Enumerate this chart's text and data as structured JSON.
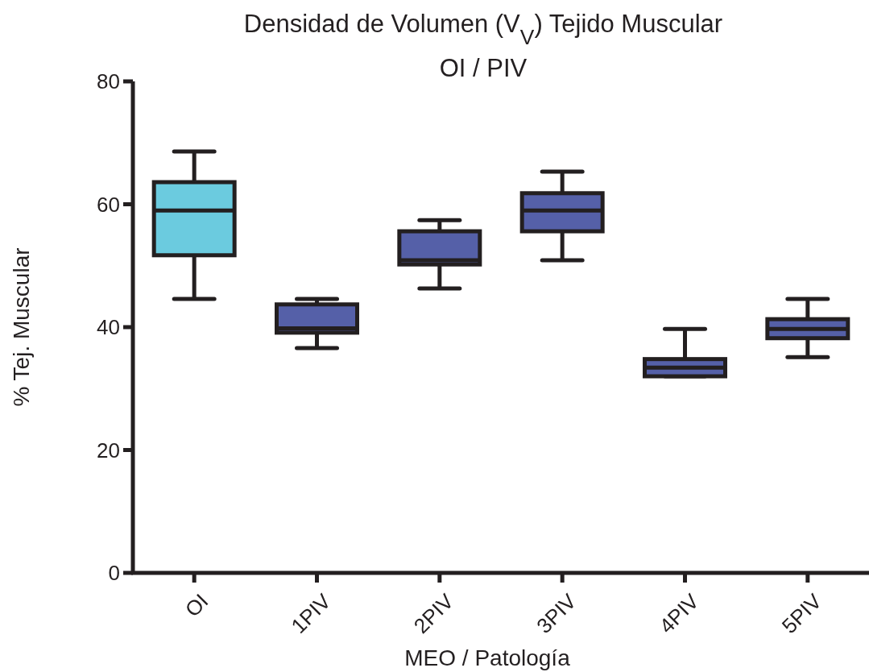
{
  "chart_data": {
    "type": "box",
    "title": "Densidad de Volumen (V$_{V}$) Tejido Muscular",
    "subtitle": "OI / PIV",
    "xlabel": "MEO / Patología",
    "ylabel": "% Tej. Muscular",
    "categories": [
      "OI",
      "1PIV",
      "2PIV",
      "3PIV",
      "4PIV",
      "5PIV"
    ],
    "colors": [
      "#6bcbdf",
      "#5560a8",
      "#5560a8",
      "#5560a8",
      "#5560a8",
      "#5560a8"
    ],
    "boxes": [
      {
        "low": 44.6,
        "q1": 51.7,
        "median": 59.0,
        "q3": 63.6,
        "high": 68.6
      },
      {
        "low": 36.6,
        "q1": 39.1,
        "median": 39.8,
        "q3": 43.7,
        "high": 44.6
      },
      {
        "low": 46.3,
        "q1": 50.2,
        "median": 50.9,
        "q3": 55.6,
        "high": 57.4
      },
      {
        "low": 50.9,
        "q1": 55.6,
        "median": 59.0,
        "q3": 61.8,
        "high": 65.3
      },
      {
        "low": 32.0,
        "q1": 32.0,
        "median": 33.4,
        "q3": 34.8,
        "high": 39.7
      },
      {
        "low": 35.1,
        "q1": 38.2,
        "median": 39.7,
        "q3": 41.3,
        "high": 44.6
      }
    ],
    "ylim": [
      0,
      80
    ],
    "yticks": [
      0,
      20,
      40,
      60,
      80
    ],
    "grid": false
  }
}
